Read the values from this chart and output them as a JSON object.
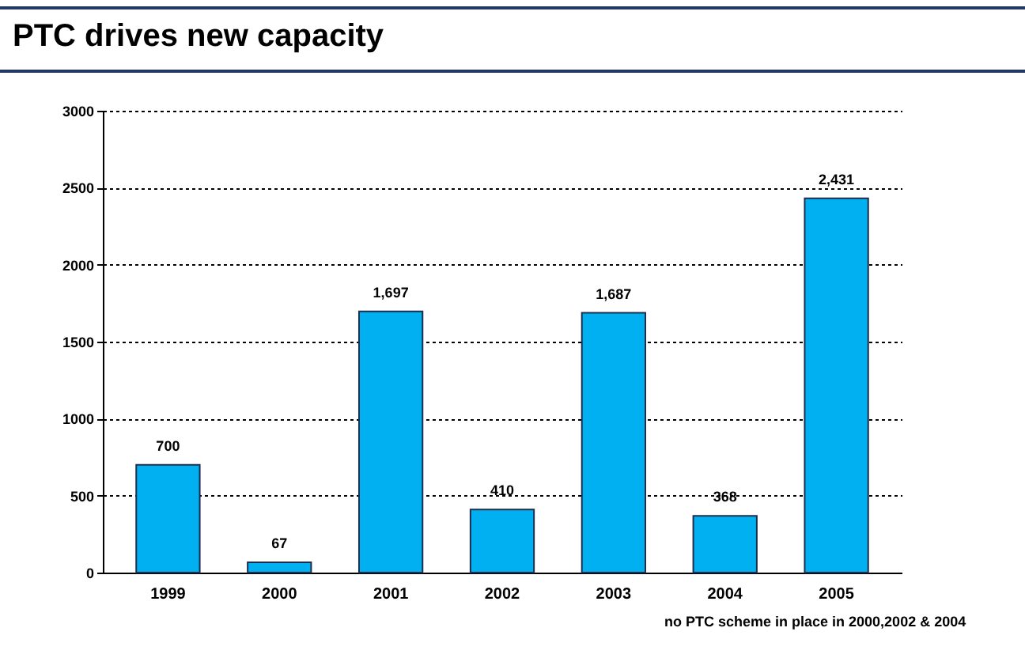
{
  "chart_data": {
    "type": "bar",
    "title": "PTC drives new capacity",
    "categories": [
      "1999",
      "2000",
      "2001",
      "2002",
      "2003",
      "2004",
      "2005"
    ],
    "values": [
      700,
      67,
      1697,
      410,
      1687,
      368,
      2431
    ],
    "value_labels": [
      "700",
      "67",
      "1,697",
      "410",
      "1,687",
      "368",
      "2,431"
    ],
    "color": "#00b0f0",
    "ylim": [
      0,
      3000
    ],
    "yticks": [
      0,
      500,
      1000,
      1500,
      2000,
      2500,
      3000
    ],
    "grid": "y",
    "annotations": [
      "no PTC scheme in place in 2000,2002 & 2004"
    ]
  }
}
